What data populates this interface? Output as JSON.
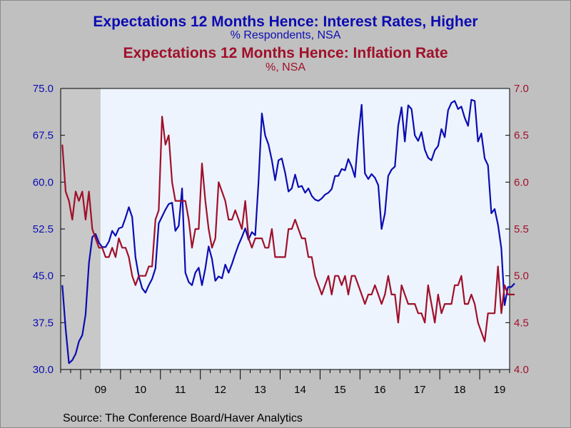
{
  "titles": {
    "title1": "Expectations 12 Months Hence: Interest Rates, Higher",
    "subtitle1": "% Respondents, NSA",
    "title2": "Expectations 12 Months Hence: Inflation Rate",
    "subtitle2": "%, NSA"
  },
  "source": "Source:  The Conference Board/Haver Analytics",
  "colors": {
    "interest": "#0c0cb2",
    "inflation": "#a0102a",
    "plot_bg": "#edf4fd",
    "recession": "#c8c8c8"
  },
  "chart_data": {
    "type": "line",
    "x_axis": {
      "start": "2008-07",
      "end": "2019-09",
      "tick_labels": [
        "09",
        "10",
        "11",
        "12",
        "13",
        "14",
        "15",
        "16",
        "17",
        "18",
        "19"
      ]
    },
    "left_axis": {
      "ylim": [
        30.0,
        75.0
      ],
      "tick_labels": [
        "75.0",
        "67.5",
        "60.0",
        "52.5",
        "45.0",
        "37.5",
        "30.0"
      ]
    },
    "right_axis": {
      "ylim": [
        4.0,
        7.0
      ],
      "tick_labels": [
        "7.0",
        "6.5",
        "6.0",
        "5.5",
        "5.0",
        "4.5",
        "4.0"
      ]
    },
    "recession_shading": [
      "2008-07",
      "2009-06"
    ],
    "series": [
      {
        "name": "Expectations 12 Months Hence: Interest Rates, Higher",
        "axis": "left",
        "values": [
          43.5,
          36.5,
          31.0,
          31.5,
          32.5,
          34.5,
          35.5,
          38.8,
          47.0,
          51.2,
          51.7,
          50.3,
          49.6,
          49.6,
          50.5,
          52.2,
          51.4,
          52.6,
          52.8,
          54.3,
          56.0,
          54.4,
          48.0,
          44.9,
          43.0,
          42.3,
          43.5,
          44.5,
          46.2,
          53.4,
          54.5,
          55.6,
          56.5,
          56.7,
          52.2,
          53.0,
          59.0,
          45.5,
          44.0,
          43.5,
          45.5,
          46.3,
          43.5,
          46.2,
          49.7,
          47.7,
          44.2,
          44.9,
          44.6,
          46.8,
          45.5,
          46.9,
          48.5,
          50.0,
          51.2,
          52.6,
          50.8,
          52.0,
          51.5,
          60.0,
          71.0,
          67.5,
          66.0,
          63.5,
          60.3,
          63.5,
          63.8,
          61.5,
          58.5,
          59.0,
          61.2,
          59.2,
          59.4,
          58.3,
          59.0,
          57.8,
          57.2,
          57.0,
          57.4,
          58.0,
          58.3,
          58.9,
          61.0,
          61.0,
          62.1,
          61.9,
          63.7,
          62.5,
          60.8,
          67.3,
          72.4,
          61.4,
          60.5,
          61.3,
          60.7,
          59.5,
          52.5,
          55.0,
          61.0,
          62.0,
          62.5,
          69.0,
          72.0,
          66.5,
          72.3,
          71.7,
          67.5,
          66.6,
          68.0,
          65.2,
          63.9,
          63.5,
          65.1,
          65.8,
          68.5,
          67.2,
          71.5,
          72.7,
          73.0,
          71.7,
          72.1,
          70.3,
          69.0,
          73.2,
          73.0,
          66.5,
          67.8,
          63.8,
          62.7,
          55.0,
          55.7,
          53.2,
          49.4,
          40.3,
          43.2,
          43.2,
          43.8
        ]
      },
      {
        "name": "Expectations 12 Months Hence: Inflation Rate",
        "axis": "right",
        "values": [
          6.4,
          5.9,
          5.8,
          5.6,
          5.9,
          5.8,
          5.9,
          5.6,
          5.9,
          5.5,
          5.4,
          5.3,
          5.3,
          5.2,
          5.2,
          5.3,
          5.2,
          5.4,
          5.3,
          5.3,
          5.2,
          5.0,
          4.9,
          5.0,
          5.0,
          5.0,
          5.1,
          5.1,
          5.6,
          5.7,
          6.7,
          6.4,
          6.5,
          6.0,
          5.8,
          5.8,
          5.8,
          5.8,
          5.6,
          5.3,
          5.5,
          5.5,
          6.2,
          5.8,
          5.5,
          5.3,
          5.4,
          6.0,
          5.9,
          5.8,
          5.6,
          5.6,
          5.7,
          5.6,
          5.5,
          5.8,
          5.4,
          5.3,
          5.4,
          5.4,
          5.4,
          5.3,
          5.3,
          5.5,
          5.2,
          5.2,
          5.2,
          5.2,
          5.5,
          5.5,
          5.6,
          5.5,
          5.4,
          5.4,
          5.2,
          5.2,
          5.0,
          4.9,
          4.8,
          4.9,
          5.0,
          4.8,
          5.0,
          5.0,
          4.9,
          5.0,
          4.8,
          5.0,
          5.0,
          4.9,
          4.8,
          4.7,
          4.8,
          4.8,
          4.9,
          4.8,
          4.7,
          4.8,
          5.0,
          4.8,
          4.8,
          4.5,
          4.9,
          4.8,
          4.7,
          4.7,
          4.7,
          4.6,
          4.6,
          4.5,
          4.9,
          4.7,
          4.5,
          4.8,
          4.6,
          4.7,
          4.7,
          4.7,
          4.9,
          4.9,
          5.0,
          4.7,
          4.7,
          4.8,
          4.7,
          4.5,
          4.4,
          4.3,
          4.6,
          4.6,
          4.6,
          5.1,
          4.6,
          4.9,
          4.8,
          4.8,
          4.8
        ]
      }
    ]
  }
}
